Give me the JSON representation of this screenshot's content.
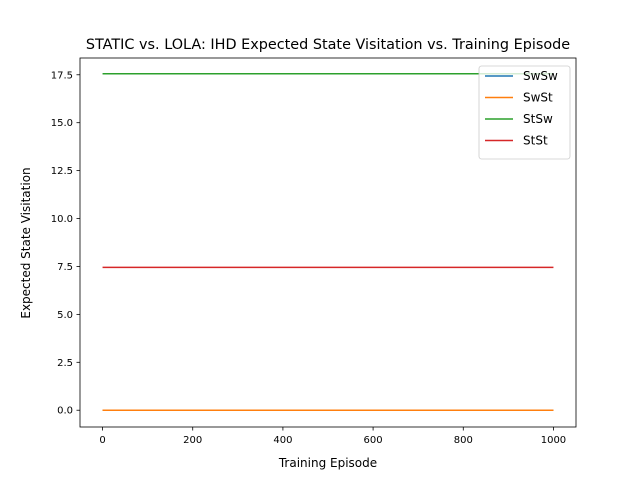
{
  "chart_data": {
    "type": "line",
    "title": "STATIC vs. LOLA: IHD Expected State Visitation vs. Training Episode",
    "xlabel": "Training Episode",
    "ylabel": "Expected State Visitation",
    "xlim": [
      -50,
      1050
    ],
    "ylim": [
      -0.875,
      18.375
    ],
    "xticks": [
      0,
      200,
      400,
      600,
      800,
      1000
    ],
    "xtick_labels": [
      "0",
      "200",
      "400",
      "600",
      "800",
      "1000"
    ],
    "yticks": [
      0.0,
      2.5,
      5.0,
      7.5,
      10.0,
      12.5,
      15.0,
      17.5
    ],
    "ytick_labels": [
      "0.0",
      "2.5",
      "5.0",
      "7.5",
      "10.0",
      "12.5",
      "15.0",
      "17.5"
    ],
    "grid": false,
    "legend_position": "top-right",
    "x": [
      0,
      1000
    ],
    "series": [
      {
        "name": "SwSw",
        "color": "#1f77b4",
        "values": [
          0.0,
          0.0
        ]
      },
      {
        "name": "SwSt",
        "color": "#ff7f0e",
        "values": [
          0.0,
          0.0
        ]
      },
      {
        "name": "StSw",
        "color": "#2ca02c",
        "values": [
          17.55,
          17.55
        ]
      },
      {
        "name": "StSt",
        "color": "#d62728",
        "values": [
          7.45,
          7.45
        ]
      }
    ]
  }
}
